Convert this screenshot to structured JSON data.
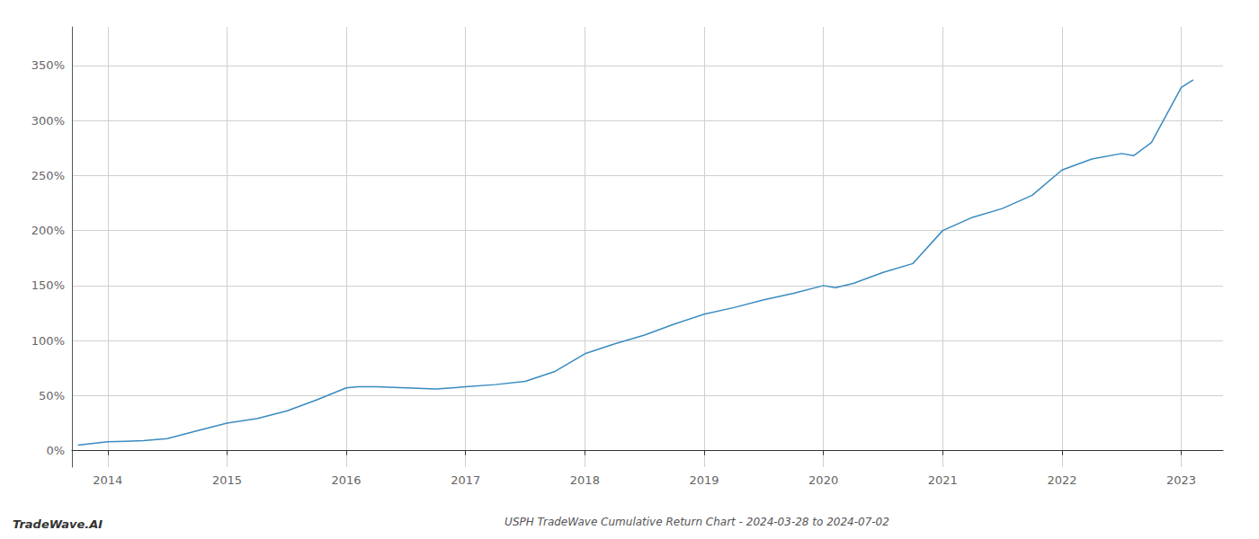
{
  "chart_data": {
    "type": "line",
    "title": "USPH TradeWave Cumulative Return Chart - 2024-03-28 to 2024-07-02",
    "annotations": [
      "TradeWave.AI"
    ],
    "x": [
      2013.75,
      2014.0,
      2014.15,
      2014.3,
      2014.5,
      2014.75,
      2015.0,
      2015.25,
      2015.5,
      2015.75,
      2016.0,
      2016.1,
      2016.25,
      2016.5,
      2016.75,
      2017.0,
      2017.25,
      2017.5,
      2017.75,
      2018.0,
      2018.25,
      2018.5,
      2018.75,
      2019.0,
      2019.25,
      2019.5,
      2019.75,
      2020.0,
      2020.1,
      2020.25,
      2020.5,
      2020.75,
      2021.0,
      2021.25,
      2021.5,
      2021.75,
      2022.0,
      2022.25,
      2022.5,
      2022.6,
      2022.75,
      2023.0,
      2023.1
    ],
    "values": [
      5,
      8,
      8.5,
      9,
      11,
      18,
      25,
      29,
      36,
      46,
      57,
      58,
      58,
      57,
      56,
      58,
      60,
      63,
      72,
      88,
      97,
      105,
      115,
      124,
      130,
      137,
      143,
      150,
      148,
      152,
      162,
      170,
      200,
      212,
      220,
      232,
      255,
      265,
      270,
      268,
      280,
      330,
      337
    ],
    "color": "#3a8bbf",
    "xlim": [
      2013.7,
      2023.35
    ],
    "ylim": [
      -15,
      385
    ],
    "xticks": [
      2014,
      2015,
      2016,
      2017,
      2018,
      2019,
      2020,
      2021,
      2022,
      2023
    ],
    "yticks": [
      {
        "value": 0,
        "label": "0%"
      },
      {
        "value": 50,
        "label": "50%"
      },
      {
        "value": 100,
        "label": "100%"
      },
      {
        "value": 150,
        "label": "150%"
      },
      {
        "value": 200,
        "label": "200%"
      },
      {
        "value": 250,
        "label": "250%"
      },
      {
        "value": 300,
        "label": "300%"
      },
      {
        "value": 350,
        "label": "350%"
      }
    ],
    "grid": true
  }
}
